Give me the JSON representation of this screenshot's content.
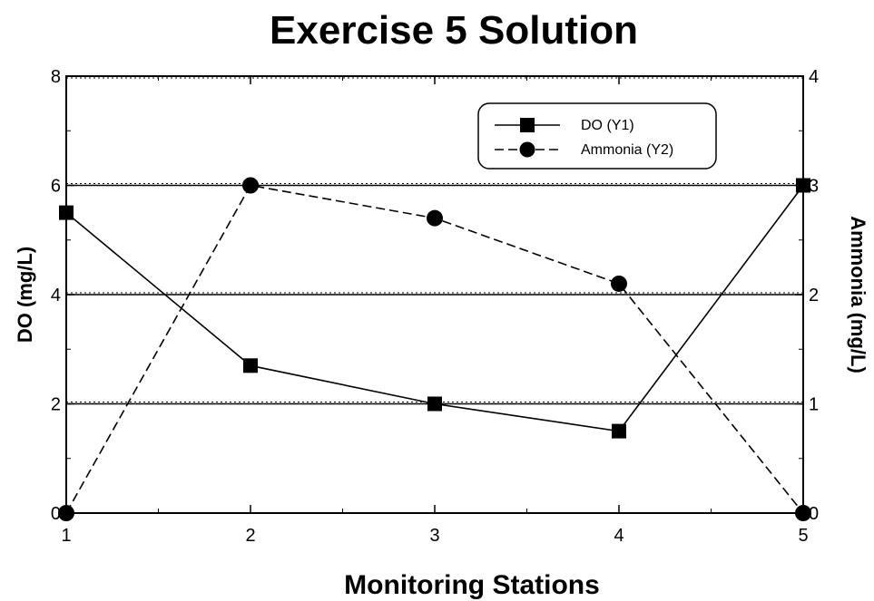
{
  "chart_data": {
    "type": "line",
    "title": "Exercise 5 Solution",
    "xlabel": "Monitoring Stations",
    "ylabel": "DO (mg/L)",
    "y2label": "Ammonia (mg/L)",
    "x": [
      1,
      2,
      3,
      4,
      5
    ],
    "x_ticks": [
      "1",
      "2",
      "3",
      "4",
      "5"
    ],
    "xlim": [
      1,
      5
    ],
    "ylim": [
      0,
      8
    ],
    "y_ticks": [
      "0",
      "2",
      "4",
      "6",
      "8"
    ],
    "y2lim": [
      0,
      4
    ],
    "y2_ticks": [
      "0",
      "1",
      "2",
      "3",
      "4"
    ],
    "grid": "horizontal",
    "legend_position": "top-right",
    "series": [
      {
        "name": "DO (Y1)",
        "axis": "left",
        "marker": "square",
        "line_style": "solid",
        "color": "#000000",
        "values": [
          5.5,
          2.7,
          2.0,
          1.5,
          6.0
        ]
      },
      {
        "name": "Ammonia (Y2)",
        "axis": "right",
        "marker": "circle",
        "line_style": "dashed",
        "color": "#000000",
        "values": [
          0.0,
          3.0,
          2.7,
          2.1,
          0.0
        ]
      }
    ]
  }
}
